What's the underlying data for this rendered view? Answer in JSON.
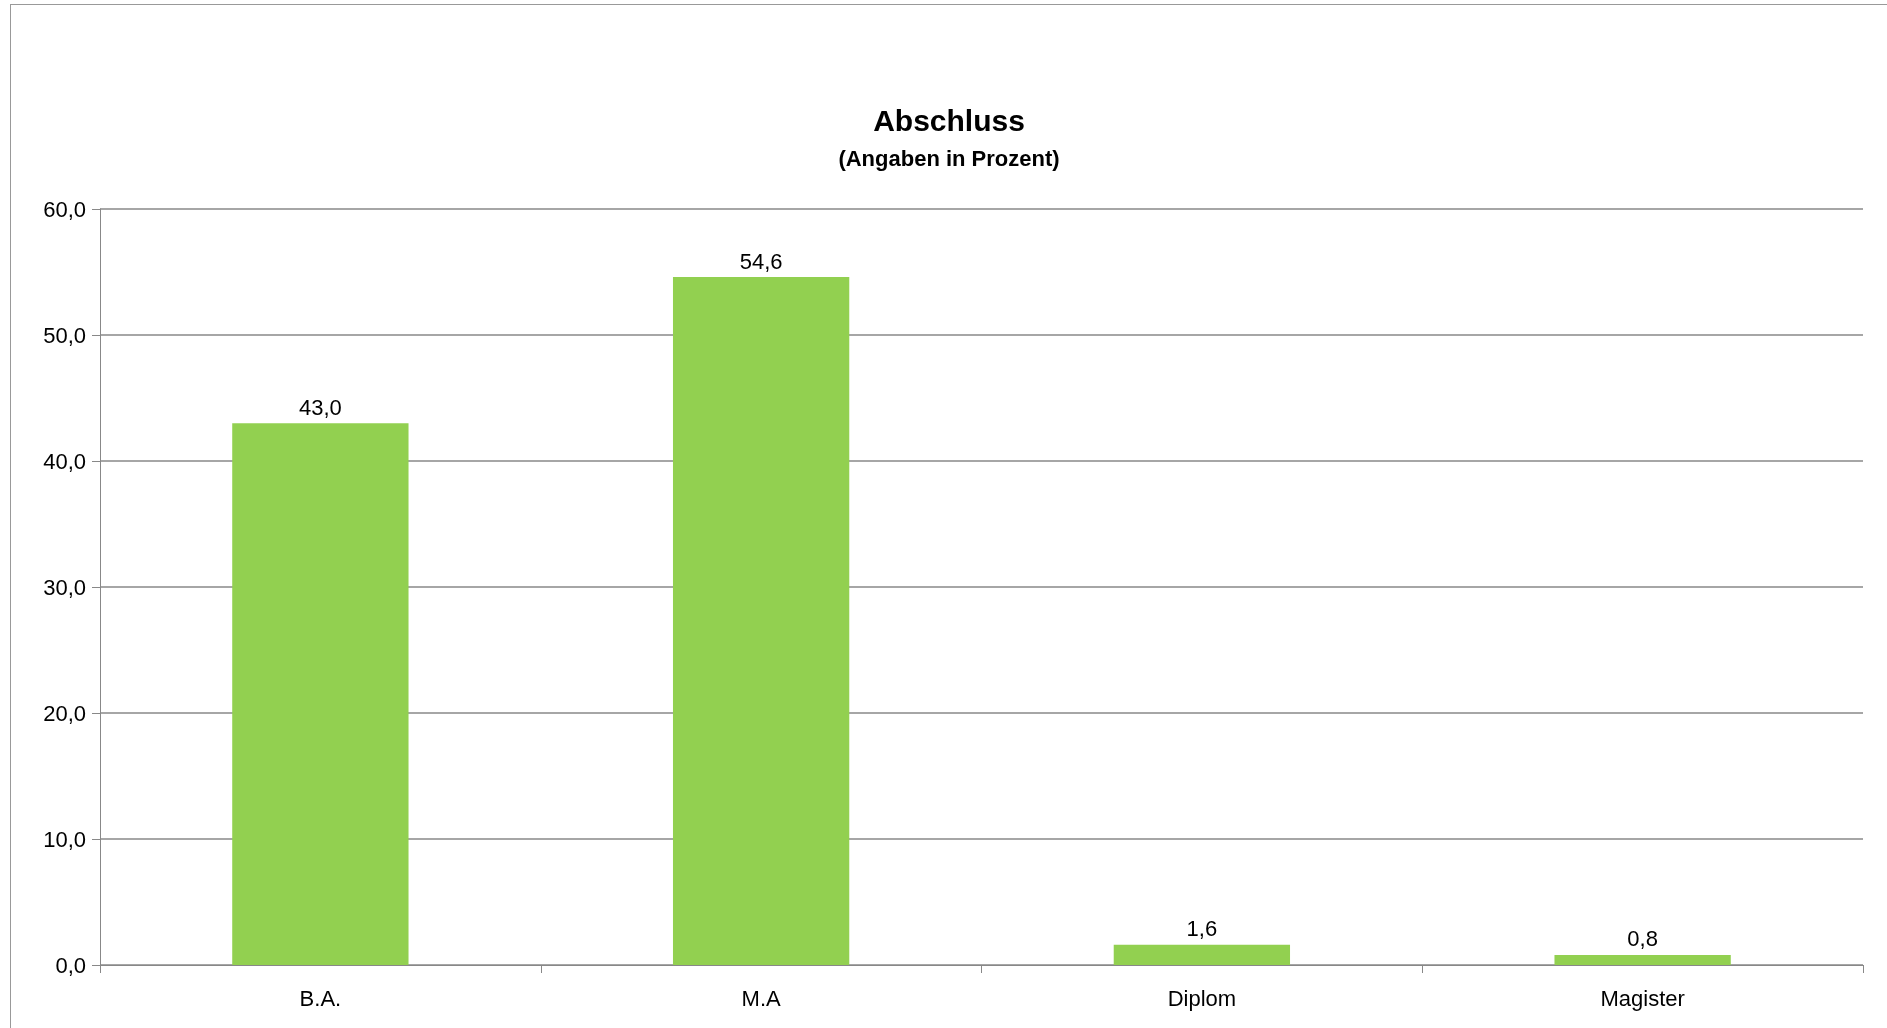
{
  "chart_data": {
    "type": "bar",
    "title": "Abschluss",
    "subtitle": "(Angaben in Prozent)",
    "categories": [
      "B.A.",
      "M.A",
      "Diplom",
      "Magister"
    ],
    "values": [
      43.0,
      54.6,
      1.6,
      0.8
    ],
    "color": "#92d050",
    "value_labels": [
      "43,0",
      "54,6",
      "1,6",
      "0,8"
    ],
    "ylim": [
      0,
      60
    ],
    "yticks": [
      {
        "value": 0,
        "label": "0,0"
      },
      {
        "value": 10,
        "label": "10,0"
      },
      {
        "value": 20,
        "label": "20,0"
      },
      {
        "value": 30,
        "label": "30,0"
      },
      {
        "value": 40,
        "label": "40,0"
      },
      {
        "value": 50,
        "label": "50,0"
      },
      {
        "value": 60,
        "label": "60,0"
      }
    ],
    "grid": "y"
  }
}
